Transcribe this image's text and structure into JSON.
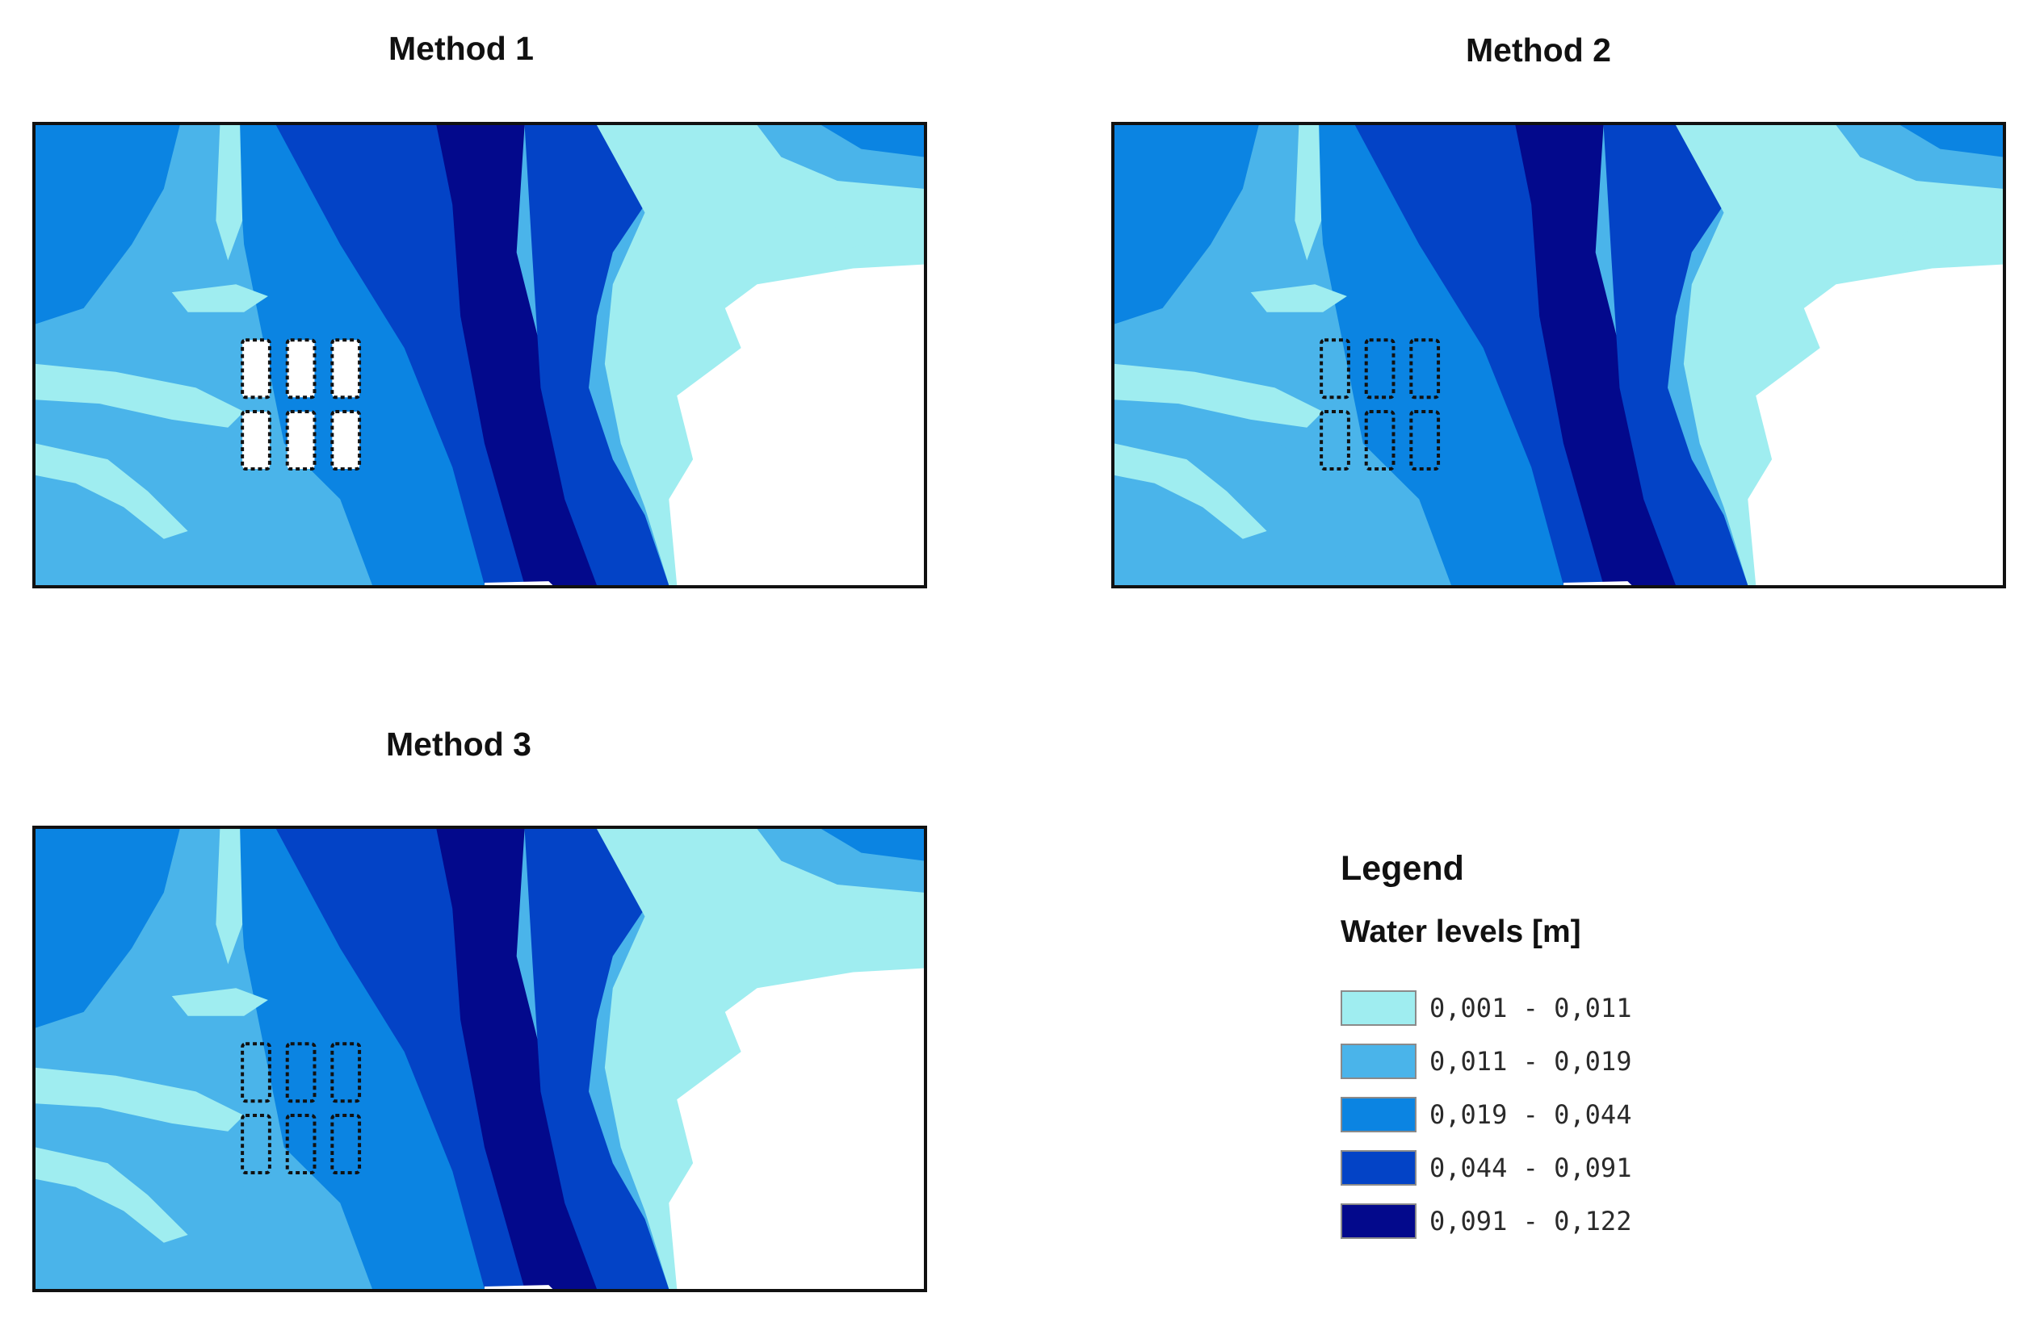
{
  "panels": [
    {
      "title": "Method 1",
      "buildings": "filled"
    },
    {
      "title": "Method 2",
      "buildings": "outline"
    },
    {
      "title": "Method 3",
      "buildings": "outline"
    }
  ],
  "legend": {
    "title": "Legend",
    "subtitle": "Water levels [m]",
    "classes": [
      {
        "label": "0,001 - 0,011",
        "color": "#9fedf0"
      },
      {
        "label": "0,011 - 0,019",
        "color": "#4ab4ea"
      },
      {
        "label": "0,019 - 0,044",
        "color": "#0b84e2"
      },
      {
        "label": "0,044 - 0,091",
        "color": "#0343c6"
      },
      {
        "label": "0,091 - 0,122",
        "color": "#03098c"
      }
    ]
  },
  "colors": {
    "dry": "#ffffff",
    "frame": "#111111",
    "building_outline": "#111111"
  }
}
